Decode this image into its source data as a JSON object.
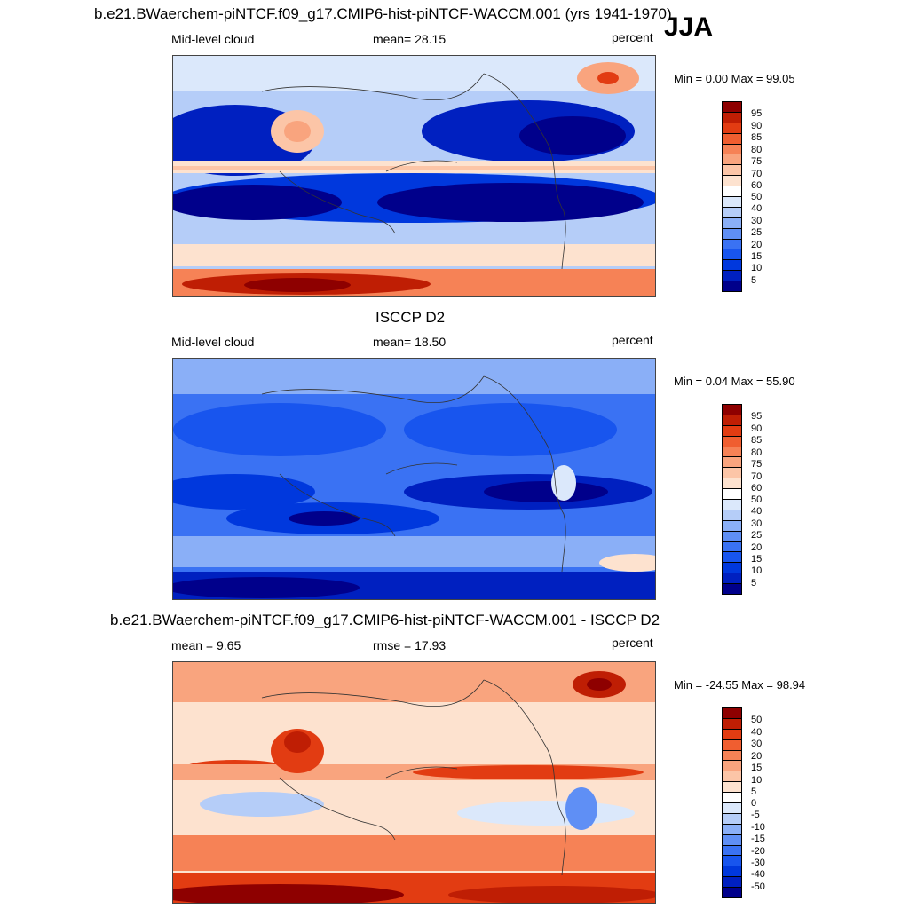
{
  "season": "JJA",
  "palettes": {
    "abs": [
      "#00008b",
      "#0020c0",
      "#0038dd",
      "#1855ee",
      "#3a72f3",
      "#5f8ff5",
      "#8aaff7",
      "#b5cdf8",
      "#dbe8fb",
      "#ffffff",
      "#fde2cf",
      "#fcc5a7",
      "#f9a47e",
      "#f68256",
      "#f05e30",
      "#e23c12",
      "#bf1e04",
      "#8e0000"
    ],
    "diff": [
      "#00008b",
      "#0020c0",
      "#0038dd",
      "#1855ee",
      "#3a72f3",
      "#5f8ff5",
      "#8aaff7",
      "#b5cdf8",
      "#dbe8fb",
      "#ffffff",
      "#fde2cf",
      "#fcc5a7",
      "#f9a47e",
      "#f68256",
      "#f05e30",
      "#e23c12",
      "#bf1e04",
      "#8e0000"
    ]
  },
  "panels": [
    {
      "title": "b.e21.BWaerchem-piNTCF.f09_g17.CMIP6-hist-piNTCF-WACCM.001 (yrs 1941-1970)",
      "left_label": "Mid-level cloud",
      "center_label": "mean=  28.15",
      "right_label": "percent",
      "minmax": "Min =   0.00 Max =  99.05",
      "colorbar_ticks": [
        "95",
        "90",
        "85",
        "80",
        "75",
        "70",
        "60",
        "50",
        "40",
        "30",
        "25",
        "20",
        "15",
        "10",
        "5"
      ],
      "palette": "abs"
    },
    {
      "title": "ISCCP D2",
      "left_label": "Mid-level cloud",
      "center_label": "mean=  18.50",
      "right_label": "percent",
      "minmax": "Min =   0.04 Max =  55.90",
      "colorbar_ticks": [
        "95",
        "90",
        "85",
        "80",
        "75",
        "70",
        "60",
        "50",
        "40",
        "30",
        "25",
        "20",
        "15",
        "10",
        "5"
      ],
      "palette": "abs"
    },
    {
      "title": "b.e21.BWaerchem-piNTCF.f09_g17.CMIP6-hist-piNTCF-WACCM.001 - ISCCP D2",
      "left_label": "mean =   9.65",
      "center_label": "rmse =  17.93",
      "right_label": "percent",
      "minmax": "Min = -24.55 Max =  98.94",
      "colorbar_ticks": [
        "50",
        "40",
        "30",
        "20",
        "15",
        "10",
        "5",
        "0",
        "-5",
        "-10",
        "-15",
        "-20",
        "-30",
        "-40",
        "-50"
      ],
      "palette": "diff"
    }
  ]
}
